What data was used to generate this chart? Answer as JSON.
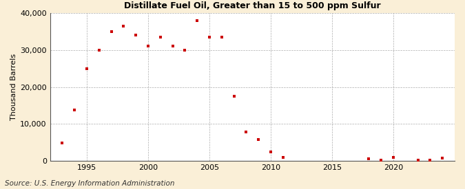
{
  "title_line2": "Distillate Fuel Oil, Greater than 15 to 500 ppm Sulfur",
  "ylabel": "Thousand Barrels",
  "source": "Source: U.S. Energy Information Administration",
  "background_color": "#faefd7",
  "plot_bg_color": "#ffffff",
  "marker_color": "#cc0000",
  "years": [
    1993,
    1994,
    1995,
    1996,
    1997,
    1998,
    1999,
    2000,
    2001,
    2002,
    2003,
    2004,
    2005,
    2006,
    2007,
    2008,
    2009,
    2010,
    2011,
    2018,
    2019,
    2020,
    2022,
    2023,
    2024
  ],
  "values": [
    4800,
    13800,
    25000,
    30000,
    35000,
    36500,
    34000,
    31000,
    33500,
    31000,
    30000,
    38000,
    33500,
    33500,
    17500,
    7800,
    5800,
    2400,
    900,
    500,
    200,
    900,
    200,
    300,
    700
  ],
  "xlim": [
    1992,
    2025
  ],
  "ylim": [
    0,
    40000
  ],
  "yticks": [
    0,
    10000,
    20000,
    30000,
    40000
  ],
  "xticks": [
    1995,
    2000,
    2005,
    2010,
    2015,
    2020
  ],
  "grid_color": "#999999",
  "title_fontsize": 9,
  "axis_fontsize": 8,
  "source_fontsize": 7.5
}
